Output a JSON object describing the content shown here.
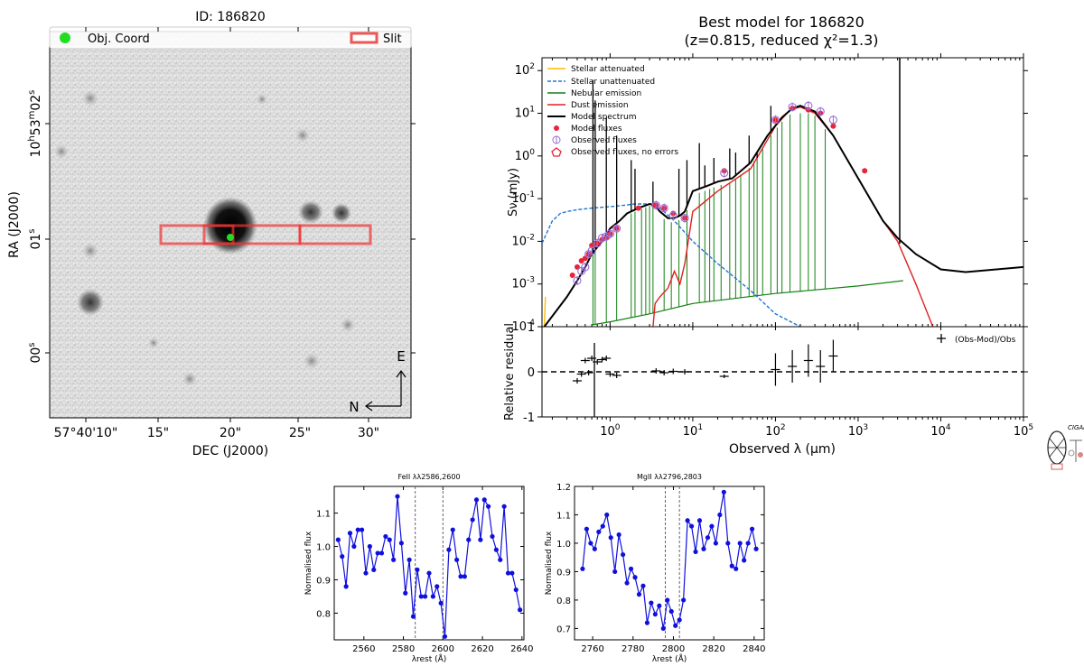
{
  "figure": {
    "logo_text": "CIGALE"
  },
  "chart_data": [
    {
      "type": "image",
      "title": "ID: 186820",
      "xlabel": "DEC (J2000)",
      "ylabel": "RA (J2000)",
      "x_ticks": [
        "57°40'10\"",
        "15\"",
        "20\"",
        "25\"",
        "30\""
      ],
      "y_ticks": [
        {
          "base": "10",
          "h": "h",
          "mid": "53",
          "m": "m",
          "sec": "02",
          "s": "s"
        },
        {
          "base": "",
          "h": "",
          "mid": "",
          "m": "",
          "sec": "01",
          "s": "s"
        },
        {
          "base": "",
          "h": "",
          "mid": "",
          "m": "",
          "sec": "00",
          "s": "s"
        }
      ],
      "legend": [
        {
          "label": "Obj. Coord",
          "color": "#22dd22",
          "marker": "circle"
        },
        {
          "label": "Slit",
          "color": "#ee5555",
          "marker": "rect"
        }
      ],
      "compass": {
        "up": "E",
        "left": "N"
      },
      "slit_color": "#ee3333",
      "object_marker_color": "#22dd22"
    },
    {
      "type": "line",
      "title": "Best model for 186820",
      "subtitle": "(z=0.815, reduced χ²=1.3)",
      "xlabel": "Observed λ (μm)",
      "ylabel": "Sν (mJy)",
      "xscale": "log",
      "yscale": "log",
      "xlim": [
        0.15,
        100000
      ],
      "ylim": [
        0.0001,
        200
      ],
      "x_ticks": [
        1,
        10,
        100,
        1000,
        10000,
        100000
      ],
      "y_ticks": [
        0.0001,
        0.001,
        0.01,
        0.1,
        1,
        10,
        100
      ],
      "legend_position": "top-left",
      "legend": [
        {
          "label": "Stellar attenuated",
          "color": "#ffbb00",
          "style": "solid"
        },
        {
          "label": "Stellar unattenuated",
          "color": "#1f77d4",
          "style": "dashed"
        },
        {
          "label": "Nebular emission",
          "color": "#128012",
          "style": "solid"
        },
        {
          "label": "Dust emission",
          "color": "#e02020",
          "style": "solid"
        },
        {
          "label": "Model spectrum",
          "color": "#000000",
          "style": "solid"
        },
        {
          "label": "Model fluxes",
          "color": "#e8233a",
          "marker": "dot"
        },
        {
          "label": "Observed fluxes",
          "color": "#9a6cd6",
          "marker": "open-circle"
        },
        {
          "label": "Observed fluxes, no errors",
          "color": "#e8233a",
          "marker": "open-pentagon"
        }
      ],
      "series": [
        {
          "name": "Model spectrum",
          "x": [
            0.16,
            0.3,
            0.4,
            0.5,
            0.6,
            0.8,
            1.0,
            1.3,
            1.6,
            2.2,
            3.0,
            3.5,
            4.0,
            5.0,
            6.0,
            7.0,
            8.0,
            10,
            15,
            20,
            30,
            50,
            80,
            120,
            160,
            200,
            300,
            500,
            1000,
            2000,
            3000,
            5000,
            10000,
            20000,
            100000
          ],
          "y": [
            0.0001,
            0.0005,
            0.0012,
            0.0025,
            0.005,
            0.01,
            0.02,
            0.03,
            0.045,
            0.06,
            0.075,
            0.07,
            0.05,
            0.035,
            0.035,
            0.04,
            0.05,
            0.15,
            0.2,
            0.25,
            0.3,
            0.7,
            3,
            8,
            13,
            15,
            11,
            3,
            0.3,
            0.03,
            0.012,
            0.005,
            0.0022,
            0.0019,
            0.0025
          ]
        },
        {
          "name": "Stellar unattenuated",
          "x": [
            0.15,
            0.2,
            0.25,
            0.3,
            0.4,
            0.6,
            1.0,
            1.5,
            2.0,
            3.0,
            4.0,
            6.0,
            10,
            20,
            50,
            100,
            200
          ],
          "y": [
            0.009,
            0.03,
            0.045,
            0.05,
            0.055,
            0.06,
            0.065,
            0.07,
            0.075,
            0.075,
            0.06,
            0.03,
            0.01,
            0.003,
            0.0007,
            0.0002,
            0.0001
          ]
        },
        {
          "name": "Nebular emission",
          "x": [
            0.6,
            1,
            3,
            10,
            100,
            1000,
            3500
          ],
          "y": [
            0.00011,
            0.00013,
            0.0002,
            0.00035,
            0.0006,
            0.0009,
            0.0012
          ]
        },
        {
          "name": "Dust emission",
          "x": [
            3.3,
            3.5,
            4,
            5,
            6,
            7,
            8,
            10,
            20,
            50,
            100,
            150,
            200,
            300,
            500,
            1000,
            2000,
            3000,
            5000,
            8000
          ],
          "y": [
            0.0001,
            0.00035,
            0.0005,
            0.0008,
            0.002,
            0.001,
            0.003,
            0.05,
            0.15,
            0.5,
            5,
            12,
            14,
            10,
            3,
            0.3,
            0.03,
            0.01,
            0.001,
            0.0001
          ]
        }
      ],
      "model_fluxes": {
        "x": [
          0.35,
          0.4,
          0.45,
          0.5,
          0.55,
          0.6,
          0.7,
          0.8,
          0.9,
          1.0,
          1.2,
          2.2,
          3.4,
          3.6,
          4.5,
          5.8,
          8.0,
          24,
          100,
          160,
          250,
          350,
          500,
          1200
        ],
        "y": [
          0.0016,
          0.0025,
          0.0035,
          0.004,
          0.005,
          0.008,
          0.009,
          0.011,
          0.012,
          0.015,
          0.02,
          0.06,
          0.07,
          0.07,
          0.06,
          0.045,
          0.035,
          0.45,
          7,
          13,
          12,
          10,
          5,
          0.45
        ]
      },
      "observed_fluxes": {
        "x": [
          0.4,
          0.45,
          0.5,
          0.55,
          0.6,
          0.7,
          0.8,
          0.9,
          1.0,
          1.2,
          3.6,
          4.5,
          5.8,
          8.0,
          24,
          100,
          160,
          250,
          350,
          500
        ],
        "y": [
          0.0012,
          0.002,
          0.0025,
          0.005,
          0.006,
          0.009,
          0.012,
          0.013,
          0.015,
          0.02,
          0.07,
          0.06,
          0.04,
          0.035,
          0.4,
          7,
          14,
          15,
          11,
          7
        ]
      }
    },
    {
      "type": "scatter",
      "xlabel": "Observed λ (μm)",
      "ylabel": "Relative residual",
      "xscale": "log",
      "xlim": [
        0.15,
        100000
      ],
      "ylim": [
        -1,
        1
      ],
      "y_ticks": [
        -1,
        0,
        1
      ],
      "legend": [
        {
          "label": "(Obs-Mod)/Obs",
          "marker": "plus"
        }
      ],
      "series": [
        {
          "name": "(Obs-Mod)/Obs",
          "x": [
            0.4,
            0.45,
            0.5,
            0.55,
            0.6,
            0.7,
            0.8,
            0.9,
            1.0,
            1.2,
            3.6,
            4.5,
            5.8,
            8.0,
            24,
            100,
            160,
            250,
            350,
            500
          ],
          "y": [
            -0.2,
            -0.05,
            0.25,
            -0.02,
            0.3,
            0.22,
            0.27,
            0.3,
            -0.05,
            -0.08,
            0.02,
            -0.02,
            0.01,
            0.0,
            -0.1,
            0.05,
            0.12,
            0.25,
            0.12,
            0.35
          ]
        }
      ]
    },
    {
      "type": "line",
      "title": "FeII λλ2586,2600",
      "xlabel": "λrest (Å)",
      "ylabel": "Normalised flux",
      "xlim": [
        2545,
        2641
      ],
      "ylim": [
        0.72,
        1.18
      ],
      "x_ticks": [
        2560,
        2580,
        2600,
        2620,
        2640
      ],
      "y_ticks": [
        0.8,
        0.9,
        1.0,
        1.1
      ],
      "vlines": [
        2586,
        2600
      ],
      "series": [
        {
          "name": "",
          "x": [
            2547,
            2549,
            2551,
            2553,
            2555,
            2557,
            2559,
            2561,
            2563,
            2565,
            2567,
            2569,
            2571,
            2573,
            2575,
            2577,
            2579,
            2581,
            2583,
            2585,
            2587,
            2589,
            2591,
            2593,
            2595,
            2597,
            2599,
            2601,
            2603,
            2605,
            2607,
            2609,
            2611,
            2613,
            2615,
            2617,
            2619,
            2621,
            2623,
            2625,
            2627,
            2629,
            2631,
            2633,
            2635,
            2637,
            2639
          ],
          "y": [
            1.02,
            0.97,
            0.88,
            1.04,
            1.0,
            1.05,
            1.05,
            0.92,
            1.0,
            0.93,
            0.98,
            0.98,
            1.03,
            1.02,
            0.96,
            1.15,
            1.01,
            0.86,
            0.96,
            0.79,
            0.93,
            0.85,
            0.85,
            0.92,
            0.85,
            0.88,
            0.83,
            0.73,
            0.99,
            1.05,
            0.96,
            0.91,
            0.91,
            1.02,
            1.08,
            1.14,
            1.02,
            1.14,
            1.12,
            1.03,
            0.99,
            0.96,
            1.12,
            0.92,
            0.92,
            0.87,
            0.81
          ]
        }
      ]
    },
    {
      "type": "line",
      "title": "MgII λλ2796,2803",
      "xlabel": "λrest (Å)",
      "ylabel": "Normalised flux",
      "xlim": [
        2751,
        2845
      ],
      "ylim": [
        0.66,
        1.2
      ],
      "x_ticks": [
        2760,
        2780,
        2800,
        2820,
        2840
      ],
      "y_ticks": [
        0.7,
        0.8,
        0.9,
        1.0,
        1.1,
        1.2
      ],
      "vlines": [
        2796,
        2803
      ],
      "series": [
        {
          "name": "",
          "x": [
            2755,
            2757,
            2759,
            2761,
            2763,
            2765,
            2767,
            2769,
            2771,
            2773,
            2775,
            2777,
            2779,
            2781,
            2783,
            2785,
            2787,
            2789,
            2791,
            2793,
            2795,
            2797,
            2799,
            2801,
            2803,
            2805,
            2807,
            2809,
            2811,
            2813,
            2815,
            2817,
            2819,
            2821,
            2823,
            2825,
            2827,
            2829,
            2831,
            2833,
            2835,
            2837,
            2839,
            2841
          ],
          "y": [
            0.91,
            1.05,
            1.0,
            0.98,
            1.04,
            1.06,
            1.1,
            1.02,
            0.9,
            1.03,
            0.96,
            0.86,
            0.91,
            0.88,
            0.82,
            0.85,
            0.72,
            0.79,
            0.75,
            0.78,
            0.7,
            0.8,
            0.76,
            0.71,
            0.73,
            0.8,
            1.08,
            1.06,
            0.97,
            1.08,
            0.98,
            1.02,
            1.06,
            1.0,
            1.1,
            1.18,
            1.0,
            0.92,
            0.91,
            1.0,
            0.94,
            1.0,
            1.05,
            0.98
          ]
        }
      ]
    }
  ]
}
